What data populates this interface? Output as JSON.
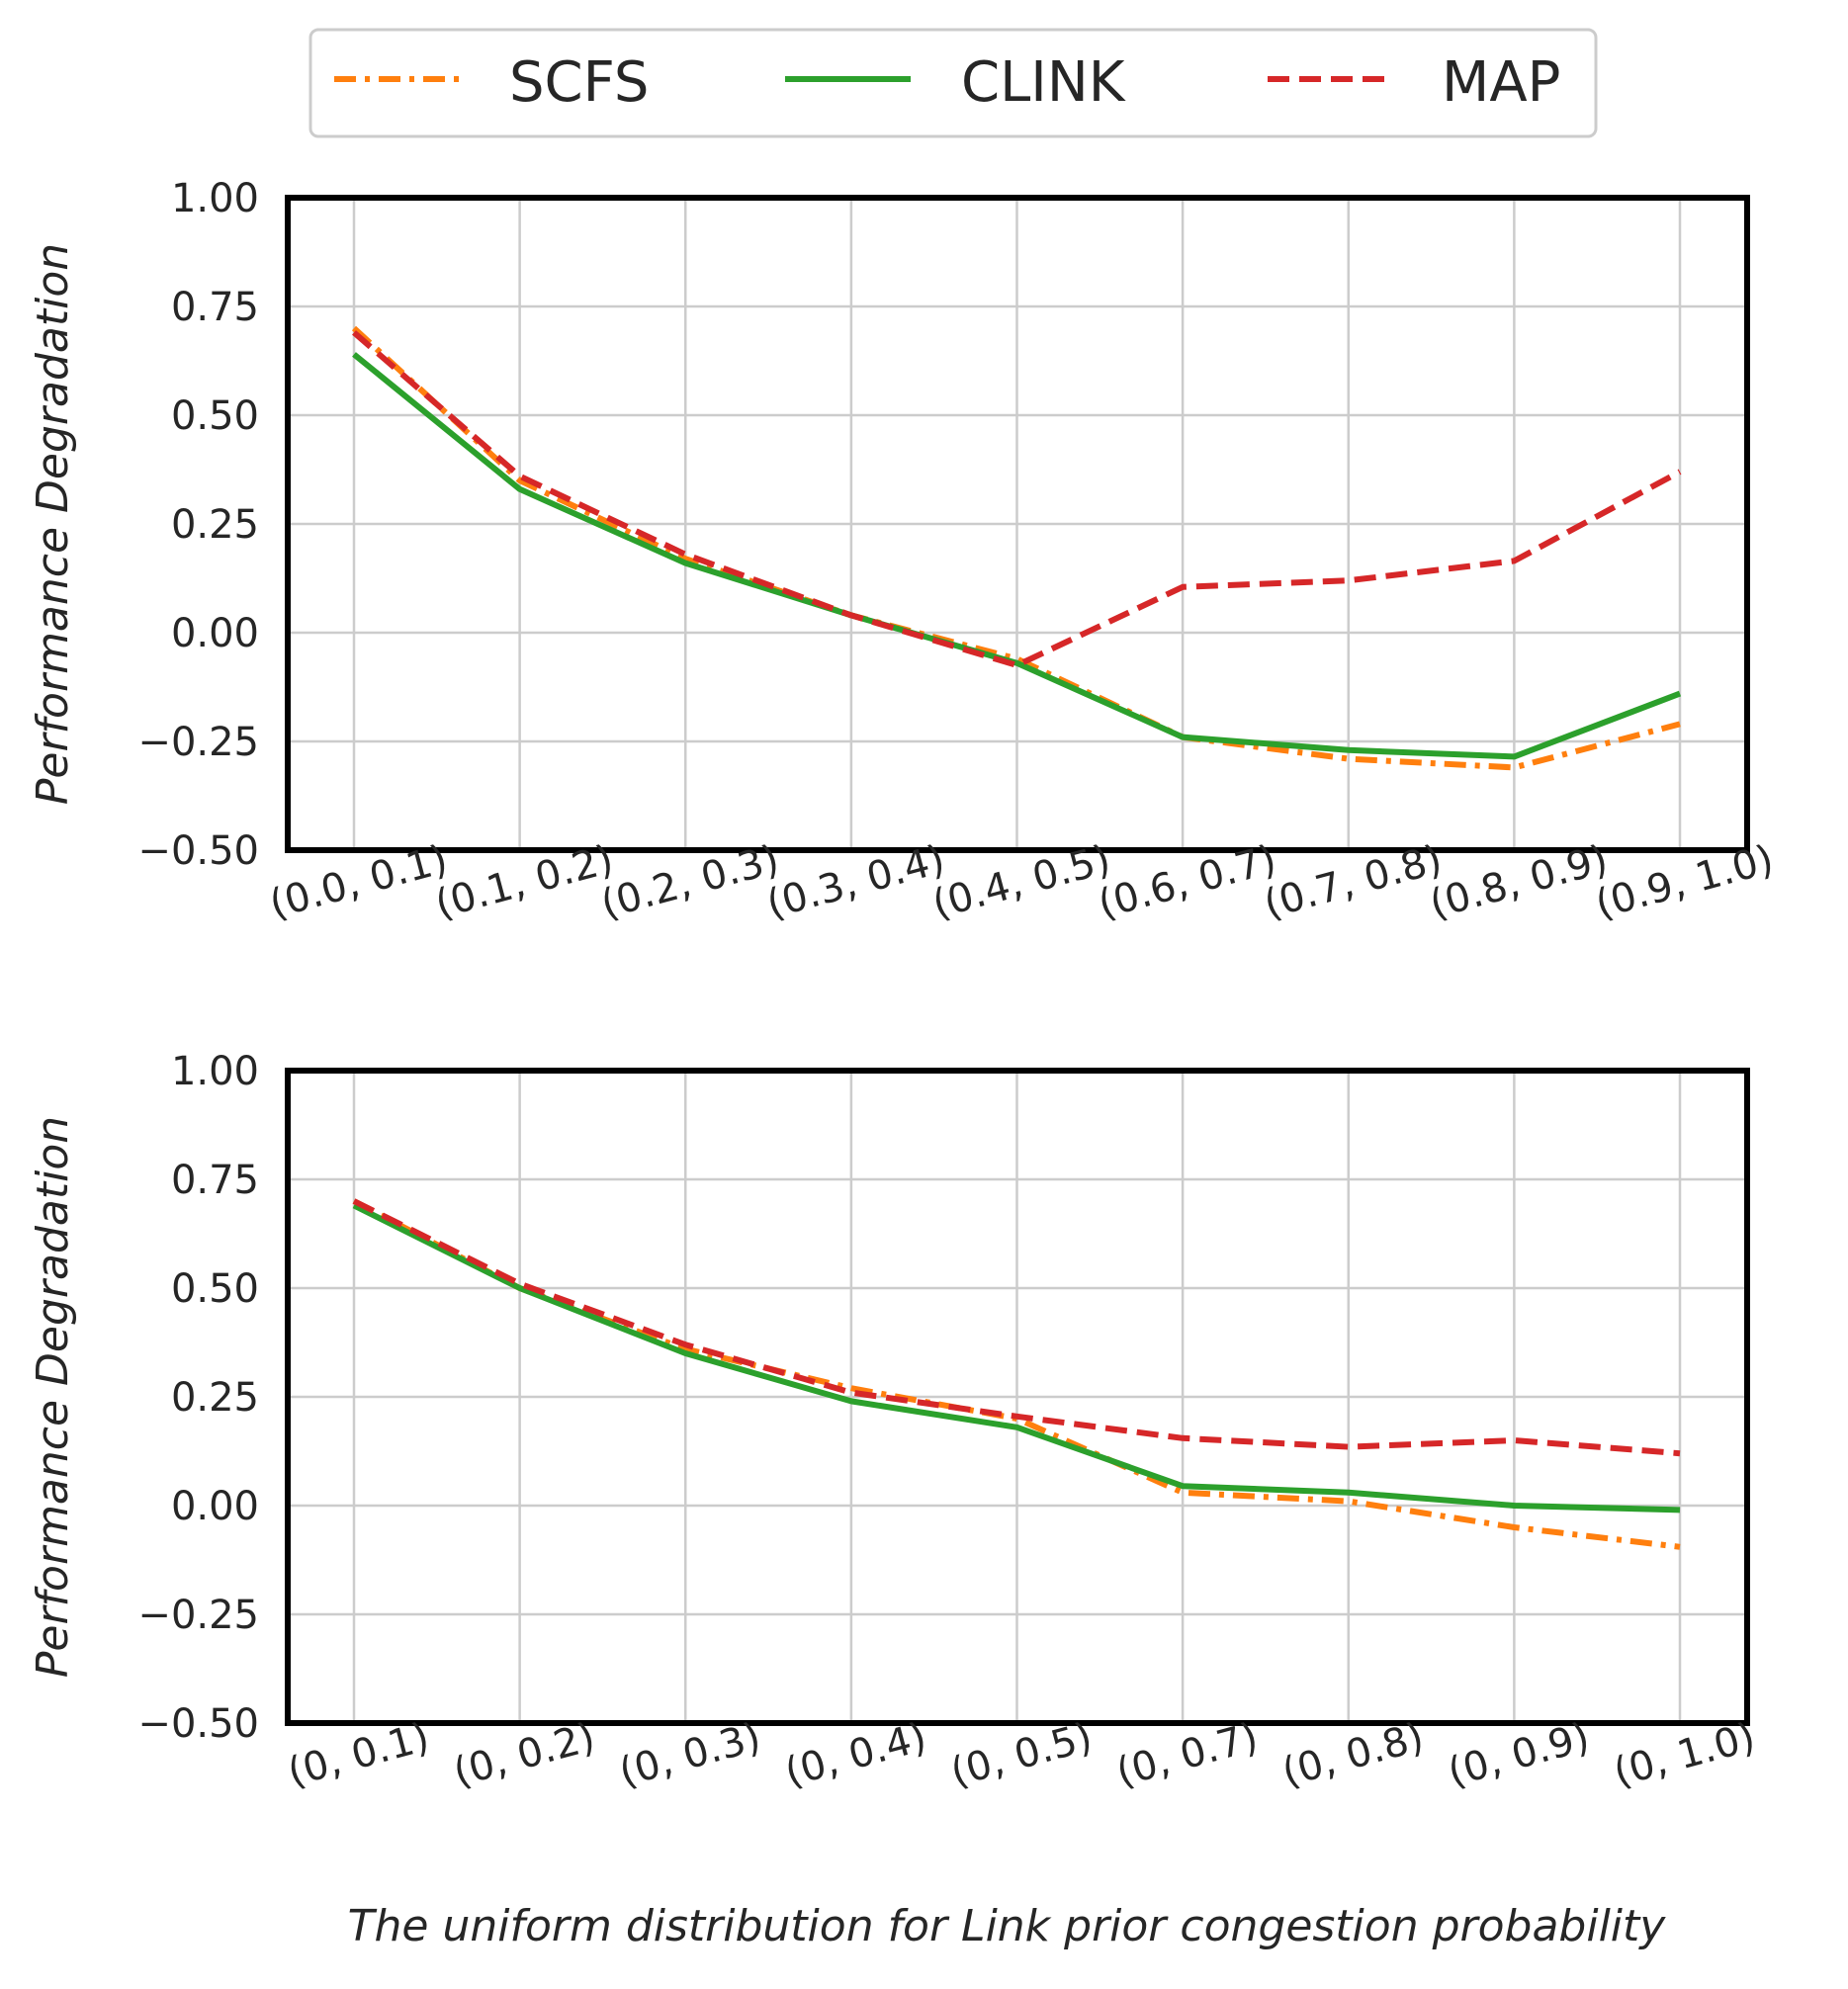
{
  "legend": {
    "placement": "top-center",
    "entries": [
      {
        "name": "SCFS",
        "color": "#ff7f0e",
        "style": "dashdot"
      },
      {
        "name": "CLINK",
        "color": "#2ca02c",
        "style": "solid"
      },
      {
        "name": "MAP",
        "color": "#d62728",
        "style": "dashed"
      }
    ]
  },
  "xlabel": "The uniform distribution for Link prior congestion probability",
  "chart_data": [
    {
      "type": "line",
      "ylabel": "Performance Degradation",
      "ylim": [
        -0.5,
        1.0
      ],
      "yticks": [
        "1.00",
        "0.75",
        "0.50",
        "0.25",
        "0.00",
        "−0.25",
        "−0.50"
      ],
      "ytick_values": [
        1.0,
        0.75,
        0.5,
        0.25,
        0.0,
        -0.25,
        -0.5
      ],
      "grid": true,
      "categories": [
        "(0.0, 0.1)",
        "(0.1, 0.2)",
        "(0.2, 0.3)",
        "(0.3, 0.4)",
        "(0.4, 0.5)",
        "(0.6, 0.7)",
        "(0.7, 0.8)",
        "(0.8, 0.9)",
        "(0.9, 1.0)"
      ],
      "series": [
        {
          "name": "SCFS",
          "values": [
            0.7,
            0.35,
            0.17,
            0.04,
            -0.06,
            -0.24,
            -0.29,
            -0.31,
            -0.21
          ]
        },
        {
          "name": "CLINK",
          "values": [
            0.64,
            0.33,
            0.16,
            0.04,
            -0.07,
            -0.24,
            -0.27,
            -0.285,
            -0.14
          ]
        },
        {
          "name": "MAP",
          "values": [
            0.69,
            0.36,
            0.18,
            0.04,
            -0.075,
            0.105,
            0.12,
            0.165,
            0.37
          ]
        }
      ]
    },
    {
      "type": "line",
      "ylabel": "Performance Degradation",
      "ylim": [
        -0.5,
        1.0
      ],
      "yticks": [
        "1.00",
        "0.75",
        "0.50",
        "0.25",
        "0.00",
        "−0.25",
        "−0.50"
      ],
      "ytick_values": [
        1.0,
        0.75,
        0.5,
        0.25,
        0.0,
        -0.25,
        -0.5
      ],
      "grid": true,
      "categories": [
        "(0, 0.1)",
        "(0, 0.2)",
        "(0, 0.3)",
        "(0, 0.4)",
        "(0, 0.5)",
        "(0, 0.7)",
        "(0, 0.8)",
        "(0, 0.9)",
        "(0, 1.0)"
      ],
      "series": [
        {
          "name": "SCFS",
          "values": [
            0.7,
            0.5,
            0.36,
            0.27,
            0.2,
            0.03,
            0.01,
            -0.05,
            -0.095
          ]
        },
        {
          "name": "CLINK",
          "values": [
            0.69,
            0.5,
            0.35,
            0.24,
            0.18,
            0.045,
            0.03,
            0.0,
            -0.01
          ]
        },
        {
          "name": "MAP",
          "values": [
            0.7,
            0.51,
            0.37,
            0.26,
            0.205,
            0.155,
            0.135,
            0.15,
            0.12
          ]
        }
      ]
    }
  ]
}
